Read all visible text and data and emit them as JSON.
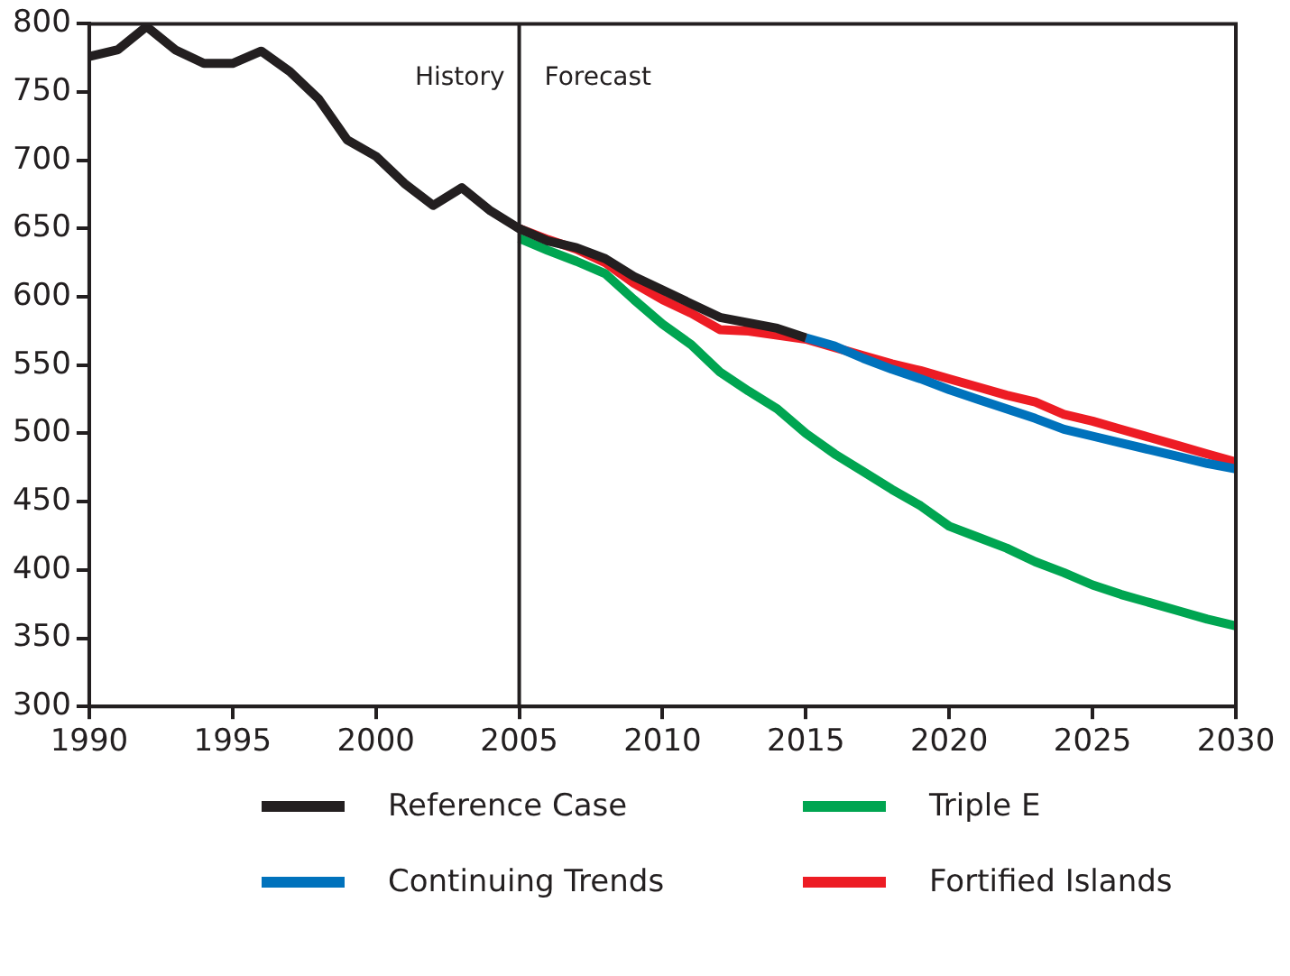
{
  "chart_data": {
    "type": "line",
    "x": [
      1990,
      1991,
      1992,
      1993,
      1994,
      1995,
      1996,
      1997,
      1998,
      1999,
      2000,
      2001,
      2002,
      2003,
      2004,
      2005,
      2006,
      2007,
      2008,
      2009,
      2010,
      2011,
      2012,
      2013,
      2014,
      2015,
      2016,
      2017,
      2018,
      2019,
      2020,
      2021,
      2022,
      2023,
      2024,
      2025,
      2026,
      2027,
      2028,
      2029,
      2030
    ],
    "xlim": [
      1990,
      2030
    ],
    "xticks": [
      1990,
      1995,
      2000,
      2005,
      2010,
      2015,
      2020,
      2025,
      2030
    ],
    "ylim": [
      300,
      800
    ],
    "yticks": [
      300,
      350,
      400,
      450,
      500,
      550,
      600,
      650,
      700,
      750,
      800
    ],
    "grid": false,
    "legend": "bottom",
    "line_style": "solid",
    "marker": "none",
    "series": [
      {
        "name": "Reference Case",
        "color": "#231f20",
        "values": [
          776,
          781,
          798,
          781,
          771,
          771,
          780,
          765,
          745,
          715,
          703,
          683,
          667,
          680,
          663,
          650,
          641,
          636,
          628,
          615,
          605,
          595,
          585,
          581,
          577,
          570,
          null,
          null,
          null,
          null,
          null,
          null,
          null,
          null,
          null,
          null,
          null,
          null,
          null,
          null,
          null
        ]
      },
      {
        "name": "Triple E",
        "color": "#00a551",
        "values": [
          null,
          null,
          null,
          null,
          null,
          null,
          null,
          null,
          null,
          null,
          null,
          null,
          null,
          null,
          null,
          643,
          634,
          626,
          617,
          598,
          580,
          565,
          545,
          531,
          518,
          500,
          485,
          472,
          459,
          447,
          432,
          424,
          416,
          406,
          398,
          389,
          382,
          376,
          370,
          364,
          359
        ]
      },
      {
        "name": "Continuing Trends",
        "color": "#0072bc",
        "values": [
          null,
          null,
          null,
          null,
          null,
          null,
          null,
          null,
          null,
          null,
          null,
          null,
          null,
          null,
          null,
          null,
          null,
          null,
          null,
          null,
          null,
          null,
          null,
          null,
          null,
          570,
          564,
          555,
          547,
          540,
          532,
          525,
          518,
          511,
          503,
          498,
          493,
          488,
          483,
          478,
          474
        ]
      },
      {
        "name": "Fortified Islands",
        "color": "#ed1c24",
        "values": [
          null,
          null,
          null,
          null,
          null,
          null,
          null,
          null,
          null,
          null,
          null,
          null,
          null,
          null,
          null,
          650,
          642,
          635,
          625,
          610,
          598,
          588,
          576,
          575,
          572,
          569,
          563,
          557,
          551,
          546,
          540,
          534,
          528,
          523,
          514,
          509,
          503,
          497,
          491,
          485,
          479
        ]
      }
    ],
    "ref_lines": [
      {
        "axis": "x",
        "value": 2005,
        "color": "#231f20"
      }
    ],
    "annotations": [
      "History",
      "Forecast"
    ]
  }
}
